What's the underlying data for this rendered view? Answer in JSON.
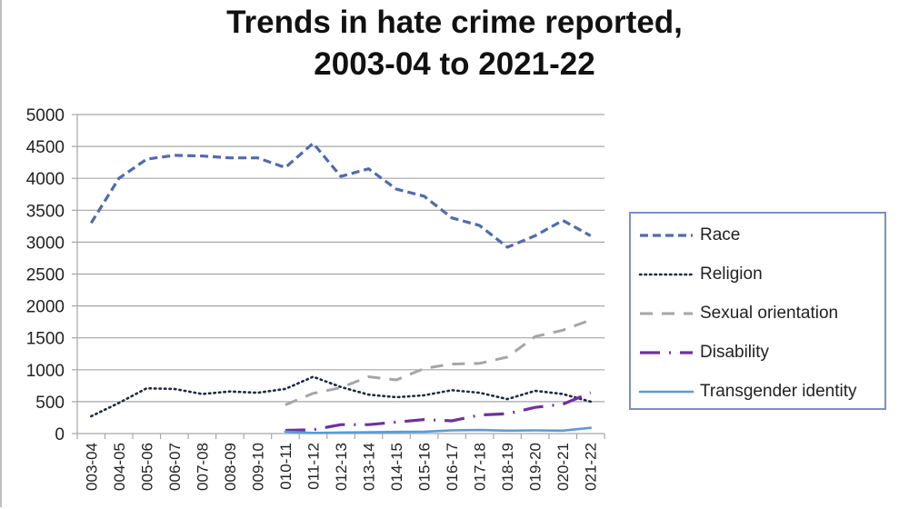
{
  "chart_data": {
    "type": "line",
    "title": "Trends in hate crime reported, 2003-04 to 2021-22",
    "title_lines": [
      "Trends in hate crime reported,",
      "2003-04 to 2021-22"
    ],
    "xlabel": "",
    "ylabel": "",
    "ylim": [
      0,
      5000
    ],
    "yticks": [
      "0",
      "500",
      "1000",
      "1500",
      "2000",
      "2500",
      "3000",
      "3500",
      "4000",
      "4500",
      "5000"
    ],
    "grid": true,
    "legend_position": "right",
    "categories": [
      "003-04",
      "004-05",
      "005-06",
      "006-07",
      "007-08",
      "008-09",
      "009-10",
      "010-11",
      "011-12",
      "012-13",
      "013-14",
      "014-15",
      "015-16",
      "016-17",
      "017-18",
      "018-19",
      "019-20",
      "020-21",
      "021-22"
    ],
    "series": [
      {
        "name": "Race",
        "color": "#4f6bb0",
        "style": "dashed",
        "values": [
          3300,
          4000,
          4300,
          4360,
          4350,
          4320,
          4320,
          4170,
          4550,
          4030,
          4150,
          3830,
          3720,
          3380,
          3260,
          2920,
          3100,
          3340,
          3100
        ]
      },
      {
        "name": "Religion",
        "color": "#1f2a44",
        "style": "dotted",
        "values": [
          270,
          480,
          710,
          700,
          620,
          660,
          640,
          700,
          890,
          730,
          610,
          570,
          600,
          680,
          640,
          540,
          670,
          620,
          500
        ]
      },
      {
        "name": "Sexual orientation",
        "color": "#a6a6a6",
        "style": "long-dash",
        "values": [
          null,
          null,
          null,
          null,
          null,
          null,
          null,
          450,
          630,
          720,
          890,
          840,
          1020,
          1090,
          1100,
          1200,
          1520,
          1620,
          1780
        ]
      },
      {
        "name": "Disability",
        "color": "#7030a0",
        "style": "dash-dot",
        "values": [
          null,
          null,
          null,
          null,
          null,
          null,
          null,
          50,
          60,
          140,
          140,
          180,
          220,
          200,
          290,
          310,
          410,
          460,
          640
        ]
      },
      {
        "name": "Transgender identity",
        "color": "#5b9bd5",
        "style": "solid",
        "values": [
          null,
          null,
          null,
          null,
          null,
          null,
          null,
          30,
          10,
          15,
          20,
          25,
          30,
          50,
          55,
          45,
          50,
          45,
          90
        ]
      }
    ]
  }
}
